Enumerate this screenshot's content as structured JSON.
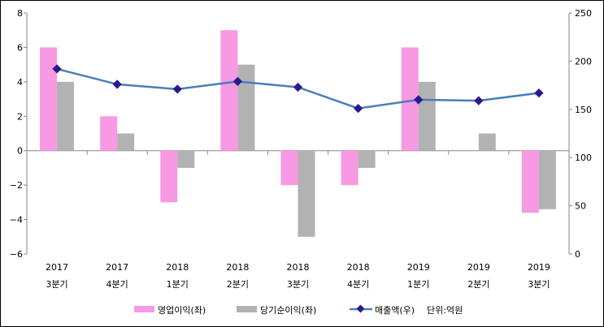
{
  "chart_data": {
    "type": "bar+line",
    "categories": [
      [
        "2017",
        "3분기"
      ],
      [
        "2017",
        "4분기"
      ],
      [
        "2018",
        "1분기"
      ],
      [
        "2018",
        "2분기"
      ],
      [
        "2018",
        "3분기"
      ],
      [
        "2018",
        "4분기"
      ],
      [
        "2019",
        "1분기"
      ],
      [
        "2019",
        "2분기"
      ],
      [
        "2019",
        "3분기"
      ]
    ],
    "series": [
      {
        "name": "영업이익(좌)",
        "type": "bar",
        "axis": "left",
        "color": "#f799e3",
        "values": [
          6,
          2,
          -3,
          7,
          -2,
          -2,
          6,
          0,
          -3.6
        ]
      },
      {
        "name": "당기순이익(좌)",
        "type": "bar",
        "axis": "left",
        "color": "#b2b2b2",
        "values": [
          4,
          1,
          -1,
          5,
          -5,
          -1,
          4,
          1,
          -3.4
        ]
      },
      {
        "name": "매출액(우)",
        "type": "line",
        "axis": "right",
        "color": "#4a7ebb",
        "marker_color": "#2b1a8c",
        "values": [
          192,
          176,
          171,
          179,
          173,
          151,
          160,
          159,
          167
        ]
      }
    ],
    "unit_note": "단위:억원",
    "left_axis": {
      "ylim": [
        -6,
        8
      ],
      "ticks": [
        -6,
        -4,
        -2,
        0,
        2,
        4,
        6,
        8
      ],
      "tick_labels": [
        "−6",
        "−4",
        "−2",
        "0",
        "2",
        "4",
        "6",
        "8"
      ]
    },
    "right_axis": {
      "ylim": [
        0,
        250
      ],
      "ticks": [
        0,
        50,
        100,
        150,
        200,
        250
      ],
      "tick_labels": [
        "0",
        "50",
        "100",
        "150",
        "200",
        "250"
      ]
    },
    "grid": false,
    "legend_position": "bottom"
  }
}
